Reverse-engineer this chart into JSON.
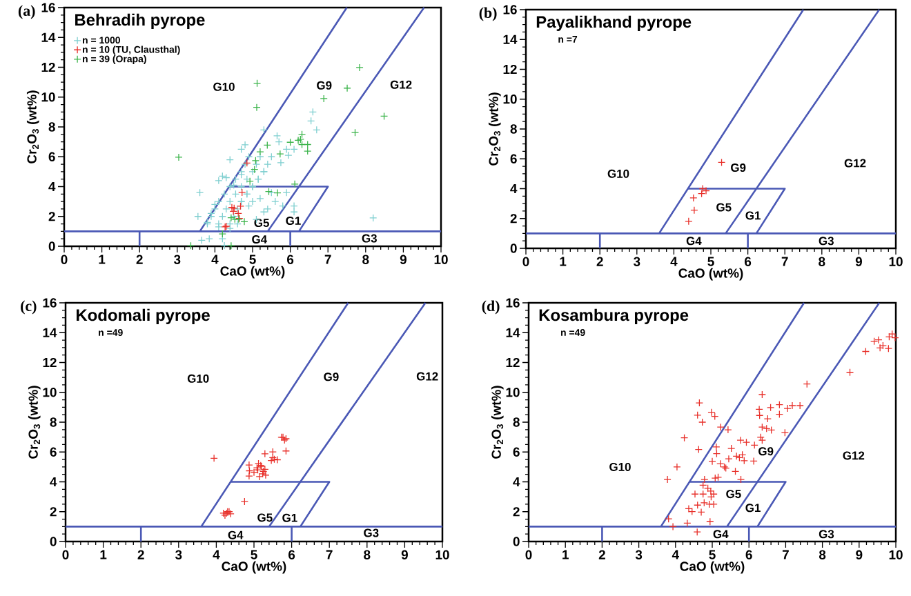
{
  "chart_data": [
    {
      "type": "scatter",
      "title": "Behradih pyrope",
      "xlabel": "CaO (wt%)",
      "ylabel": "Cr$_{2}$O$_{3}$ (wt%)",
      "xlim": [
        0,
        10
      ],
      "ylim": [
        0,
        16
      ],
      "xticks": [
        0,
        1,
        2,
        3,
        4,
        5,
        6,
        7,
        8,
        9,
        10
      ],
      "yticks": [
        0,
        2,
        4,
        6,
        8,
        10,
        12,
        14,
        16
      ],
      "marker": "cross",
      "legend": "top left",
      "annotations": [
        "(a)",
        "G10",
        "G9",
        "G12",
        "G5",
        "G1",
        "G4",
        "G3"
      ],
      "series": [
        {
          "name": "n = 1000",
          "color": "#7fcfd0",
          "x": [
            3.6,
            3.55,
            3.85,
            3.65,
            4.25,
            4.2,
            8.2,
            6.6,
            6.55,
            6.7,
            5.3,
            5.65,
            5.7,
            5.9,
            6.1,
            5.95,
            5.75,
            4.8,
            4.7,
            4.4,
            4.2,
            4.1,
            4.3,
            4.5,
            4.7,
            5.5,
            5.6,
            5.8,
            5.4,
            6.1,
            6.1,
            5.9,
            5.2,
            5.0,
            4.9,
            5.3,
            5.1,
            3.9,
            4.0,
            3.8,
            4.1,
            4.4,
            4.6,
            3.8,
            4.1,
            4.4,
            3.9,
            4.2,
            4.5,
            4.0,
            4.3,
            4.6,
            4.1,
            4.4,
            4.7,
            4.25,
            4.55,
            4.85,
            4.4,
            4.7,
            5.0,
            4.55,
            4.85,
            5.15,
            4.7,
            5.0,
            5.3,
            4.8,
            5.1,
            5.4,
            4.9,
            5.2,
            5.5,
            4.7,
            4.85,
            5.0,
            5.15,
            5.3
          ],
          "values": [
            3.6,
            2.0,
            0.5,
            0.4,
            0.05,
            0.5,
            1.9,
            9.0,
            8.4,
            7.8,
            7.8,
            7.4,
            7.0,
            6.5,
            6.5,
            6.1,
            5.6,
            6.8,
            6.5,
            5.8,
            4.7,
            4.4,
            4.6,
            4.1,
            4.8,
            3.6,
            3.0,
            2.7,
            2.5,
            2.7,
            2.3,
            3.6,
            3.2,
            3.0,
            2.7,
            2.3,
            1.8,
            2.2,
            2.8,
            1.6,
            1.3,
            1.2,
            1.5,
            1.5,
            1.5,
            1.5,
            2.0,
            2.0,
            2.0,
            2.5,
            2.5,
            2.5,
            3.0,
            3.0,
            3.0,
            3.5,
            3.5,
            3.5,
            4.0,
            4.0,
            4.0,
            4.5,
            4.5,
            4.5,
            5.0,
            5.0,
            5.0,
            5.5,
            5.5,
            5.5,
            6.0,
            6.0,
            6.0,
            3.0,
            3.5,
            4.0,
            4.5,
            5.0
          ]
        },
        {
          "name": "n = 10 (TU, Clausthal)",
          "color": "#e8302a",
          "x": [
            4.85,
            4.72,
            4.51,
            4.49,
            4.68,
            4.65,
            4.3,
            4.27,
            4.45,
            4.62
          ],
          "values": [
            5.58,
            3.61,
            2.55,
            2.34,
            2.69,
            1.87,
            1.34,
            1.3,
            2.6,
            2.2
          ]
        },
        {
          "name": "n = 39 (Orapa)",
          "color": "#3cb44b",
          "x": [
            3.04,
            5.12,
            5.11,
            7.84,
            7.51,
            6.89,
            8.49,
            7.72,
            6.31,
            6.27,
            6.21,
            6.31,
            6.46,
            6.0,
            5.73,
            5.08,
            5.05,
            5.39,
            5.43,
            5.66,
            4.43,
            4.53,
            4.63,
            4.78,
            4.2,
            4.43,
            3.36,
            6.12,
            4.93,
            5.2,
            6.46
          ],
          "values": [
            5.97,
            10.92,
            9.31,
            11.98,
            10.6,
            9.9,
            8.72,
            7.62,
            7.5,
            7.17,
            7.1,
            6.82,
            6.38,
            6.97,
            6.19,
            5.74,
            5.15,
            6.78,
            3.67,
            3.58,
            1.91,
            1.81,
            1.81,
            1.65,
            0.83,
            0.04,
            0.04,
            4.17,
            4.36,
            6.33,
            6.82
          ]
        },
        {
          "type": "line",
          "marker": "none",
          "color": "#4a58b5",
          "x": [
            0,
            10
          ],
          "values": [
            1,
            1
          ]
        },
        {
          "type": "line",
          "marker": "none",
          "color": "#4a58b5",
          "x": [
            3.6,
            7.5
          ],
          "values": [
            1,
            16
          ]
        },
        {
          "type": "line",
          "marker": "none",
          "color": "#4a58b5",
          "x": [
            5.4,
            9.55
          ],
          "values": [
            1,
            16
          ]
        },
        {
          "type": "line",
          "marker": "none",
          "color": "#4a58b5",
          "x": [
            4.38,
            7,
            6.23
          ],
          "values": [
            4,
            4,
            1
          ]
        },
        {
          "type": "line",
          "marker": "none",
          "color": "#4a58b5",
          "x": [
            2,
            2
          ],
          "values": [
            0,
            1
          ]
        },
        {
          "type": "line",
          "marker": "none",
          "color": "#4a58b5",
          "x": [
            6,
            6
          ],
          "values": [
            0,
            1
          ]
        }
      ]
    },
    {
      "type": "scatter",
      "title": "Payalikhand pyrope",
      "xlabel": "CaO (wt%)",
      "ylabel": "Cr$_{2}$O$_{3}$ (wt%)",
      "xlim": [
        0,
        10
      ],
      "ylim": [
        0,
        16
      ],
      "xticks": [
        0,
        1,
        2,
        3,
        4,
        5,
        6,
        7,
        8,
        9,
        10
      ],
      "yticks": [
        0,
        2,
        4,
        6,
        8,
        10,
        12,
        14,
        16
      ],
      "marker": "cross",
      "annotations": [
        "(b)",
        "n =7",
        "G10",
        "G9",
        "G12",
        "G5",
        "G1",
        "G4",
        "G3"
      ],
      "series": [
        {
          "color": "#e8302a",
          "x": [
            5.29,
            4.78,
            4.87,
            4.75,
            4.53,
            4.55,
            4.4
          ],
          "values": [
            5.76,
            4.0,
            3.86,
            3.67,
            3.38,
            2.56,
            1.81
          ]
        },
        {
          "type": "line",
          "marker": "none",
          "color": "#4a58b5",
          "x": [
            0,
            10
          ],
          "values": [
            1,
            1
          ]
        },
        {
          "type": "line",
          "marker": "none",
          "color": "#4a58b5",
          "x": [
            3.6,
            7.5
          ],
          "values": [
            1,
            16
          ]
        },
        {
          "type": "line",
          "marker": "none",
          "color": "#4a58b5",
          "x": [
            5.4,
            9.55
          ],
          "values": [
            1,
            16
          ]
        },
        {
          "type": "line",
          "marker": "none",
          "color": "#4a58b5",
          "x": [
            4.38,
            7,
            6.23
          ],
          "values": [
            4,
            4,
            1
          ]
        },
        {
          "type": "line",
          "marker": "none",
          "color": "#4a58b5",
          "x": [
            2,
            2
          ],
          "values": [
            0,
            1
          ]
        },
        {
          "type": "line",
          "marker": "none",
          "color": "#4a58b5",
          "x": [
            6,
            6
          ],
          "values": [
            0,
            1
          ]
        }
      ]
    },
    {
      "type": "scatter",
      "title": "Kodomali pyrope",
      "xlabel": "CaO (wt%)",
      "ylabel": "Cr$_{2}$O$_{3}$ (wt%)",
      "xlim": [
        0,
        10
      ],
      "ylim": [
        0,
        16
      ],
      "xticks": [
        0,
        1,
        2,
        3,
        4,
        5,
        6,
        7,
        8,
        9,
        10
      ],
      "yticks": [
        0,
        2,
        4,
        6,
        8,
        10,
        12,
        14,
        16
      ],
      "marker": "cross",
      "annotations": [
        "(c)",
        "n =49",
        "G10",
        "G9",
        "G12",
        "G5",
        "G1",
        "G4",
        "G3"
      ],
      "series": [
        {
          "color": "#e8302a",
          "x": [
            3.94,
            4.75,
            4.19,
            4.3,
            4.38,
            4.23,
            4.34,
            4.27,
            4.87,
            4.87,
            4.88,
            5.12,
            5.08,
            5.2,
            5.23,
            5.15,
            5.0,
            5.29,
            5.31,
            5.29,
            5.5,
            5.46,
            5.54,
            5.62,
            5.5,
            5.73,
            5.85,
            5.81,
            5.77,
            5.85,
            5.1,
            5.25,
            5.18
          ],
          "values": [
            5.58,
            2.68,
            1.9,
            2.0,
            1.86,
            1.76,
            2.0,
            1.9,
            5.13,
            4.39,
            4.74,
            5.23,
            4.94,
            5.03,
            4.54,
            4.35,
            4.64,
            4.84,
            4.45,
            5.88,
            6.01,
            5.43,
            5.52,
            5.48,
            5.62,
            6.99,
            6.89,
            6.8,
            6.99,
            6.07,
            4.8,
            4.7,
            5.1
          ]
        },
        {
          "type": "line",
          "marker": "none",
          "color": "#4a58b5",
          "x": [
            0,
            10
          ],
          "values": [
            1,
            1
          ]
        },
        {
          "type": "line",
          "marker": "none",
          "color": "#4a58b5",
          "x": [
            3.6,
            7.5
          ],
          "values": [
            1,
            16
          ]
        },
        {
          "type": "line",
          "marker": "none",
          "color": "#4a58b5",
          "x": [
            5.4,
            9.55
          ],
          "values": [
            1,
            16
          ]
        },
        {
          "type": "line",
          "marker": "none",
          "color": "#4a58b5",
          "x": [
            4.38,
            7,
            6.23
          ],
          "values": [
            4,
            4,
            1
          ]
        },
        {
          "type": "line",
          "marker": "none",
          "color": "#4a58b5",
          "x": [
            2,
            2
          ],
          "values": [
            0,
            1
          ]
        },
        {
          "type": "line",
          "marker": "none",
          "color": "#4a58b5",
          "x": [
            6,
            6
          ],
          "values": [
            0,
            1
          ]
        }
      ]
    },
    {
      "type": "scatter",
      "title": "Kosambura pyrope",
      "xlabel": "CaO (wt%)",
      "ylabel": "Cr$_{2}$O$_{3}$ (wt%)",
      "xlim": [
        0,
        10
      ],
      "ylim": [
        0,
        16
      ],
      "xticks": [
        0,
        1,
        2,
        3,
        4,
        5,
        6,
        7,
        8,
        9,
        10
      ],
      "yticks": [
        0,
        2,
        4,
        6,
        8,
        10,
        12,
        14,
        16
      ],
      "marker": "cross",
      "annotations": [
        "(d)",
        "n =49",
        "G10",
        "G9",
        "G12",
        "G5",
        "G1",
        "G4",
        "G3"
      ],
      "series": [
        {
          "color": "#e8302a",
          "x": [
            4.65,
            4.6,
            4.73,
            4.98,
            5.07,
            5.23,
            5.43,
            4.24,
            4.63,
            4.04,
            3.78,
            5.11,
            5.12,
            5.0,
            5.22,
            5.33,
            5.37,
            5.45,
            5.52,
            5.66,
            5.74,
            5.82,
            5.87,
            5.77,
            5.93,
            6.15,
            6.13,
            5.63,
            5.78,
            6.36,
            6.28,
            6.29,
            6.51,
            6.36,
            6.48,
            6.61,
            6.32,
            6.36,
            6.59,
            6.83,
            6.83,
            7.05,
            7.18,
            7.39,
            6.98,
            7.58,
            8.75,
            9.18,
            9.41,
            9.53,
            9.65,
            9.82,
            9.9,
            9.98,
            9.57,
            9.8,
            4.79,
            4.75,
            4.88,
            4.96,
            5.04,
            4.97,
            4.75,
            4.53,
            4.92,
            5.04,
            4.78,
            4.6,
            4.36,
            4.45,
            4.7,
            3.81,
            4.32,
            4.94,
            4.59,
            3.93,
            5.08,
            5.16
          ],
          "values": [
            9.29,
            8.47,
            8.0,
            8.66,
            8.39,
            7.67,
            7.49,
            6.95,
            6.17,
            5.0,
            4.16,
            6.34,
            5.89,
            5.37,
            5.21,
            5.0,
            4.92,
            5.54,
            6.24,
            5.72,
            5.62,
            5.81,
            5.42,
            6.79,
            6.65,
            6.46,
            5.39,
            4.7,
            4.16,
            9.85,
            8.86,
            8.45,
            8.23,
            7.67,
            7.57,
            7.47,
            6.99,
            6.79,
            8.98,
            9.17,
            8.53,
            8.92,
            9.11,
            9.11,
            7.3,
            10.56,
            11.34,
            12.74,
            13.42,
            13.52,
            13.13,
            13.72,
            13.91,
            13.66,
            12.98,
            12.94,
            4.16,
            3.77,
            3.57,
            3.38,
            3.18,
            2.99,
            3.18,
            3.18,
            2.5,
            2.5,
            2.6,
            2.44,
            2.2,
            2.01,
            1.97,
            1.52,
            1.23,
            1.33,
            0.64,
            1.0,
            4.25,
            4.31
          ]
        },
        {
          "type": "line",
          "marker": "none",
          "color": "#4a58b5",
          "x": [
            0,
            10
          ],
          "values": [
            1,
            1
          ]
        },
        {
          "type": "line",
          "marker": "none",
          "color": "#4a58b5",
          "x": [
            3.6,
            7.5
          ],
          "values": [
            1,
            16
          ]
        },
        {
          "type": "line",
          "marker": "none",
          "color": "#4a58b5",
          "x": [
            5.4,
            9.55
          ],
          "values": [
            1,
            16
          ]
        },
        {
          "type": "line",
          "marker": "none",
          "color": "#4a58b5",
          "x": [
            4.38,
            7,
            6.23
          ],
          "values": [
            4,
            4,
            1
          ]
        },
        {
          "type": "line",
          "marker": "none",
          "color": "#4a58b5",
          "x": [
            2,
            2
          ],
          "values": [
            0,
            1
          ]
        },
        {
          "type": "line",
          "marker": "none",
          "color": "#4a58b5",
          "x": [
            6,
            6
          ],
          "values": [
            0,
            1
          ]
        }
      ]
    }
  ]
}
